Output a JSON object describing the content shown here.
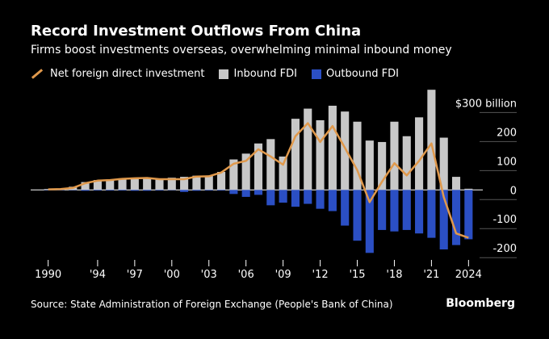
{
  "header": {
    "title": "Record Investment Outflows From China",
    "subtitle": "Firms boost investments overseas, overwhelming minimal inbound money"
  },
  "footer": {
    "source": "Source: State Administration of Foreign Exchange (People's Bank of China)",
    "brand": "Bloomberg"
  },
  "colors": {
    "net": "#e0994c",
    "inbound": "#c8c8c8",
    "outbound": "#2b4fc4",
    "background": "#000000"
  },
  "chart_data": {
    "type": "bar",
    "title": "Record Investment Outflows From China",
    "subtitle": "Firms boost investments overseas, overwhelming minimal inbound money",
    "years": [
      1990,
      1991,
      1992,
      1993,
      1994,
      1995,
      1996,
      1997,
      1998,
      1999,
      2000,
      2001,
      2002,
      2003,
      2004,
      2005,
      2006,
      2007,
      2008,
      2009,
      2010,
      2011,
      2012,
      2013,
      2014,
      2015,
      2016,
      2017,
      2018,
      2019,
      2020,
      2021,
      2022,
      2023,
      2024
    ],
    "x_tick_labels": [
      "1990",
      "'94",
      "'97",
      "'00",
      "'03",
      "'06",
      "'09",
      "'12",
      "'15",
      "'18",
      "'21",
      "2024"
    ],
    "x_tick_years": [
      1990,
      1994,
      1997,
      2000,
      2003,
      2006,
      2009,
      2012,
      2015,
      2018,
      2021,
      2024
    ],
    "y_tick_labels": [
      "$300 billion",
      "200",
      "100",
      "0",
      "-100",
      "-200"
    ],
    "y_tick_values": [
      300,
      200,
      100,
      0,
      -100,
      -200
    ],
    "ylim": [
      -230,
      340
    ],
    "series": [
      {
        "name": "Inbound FDI",
        "kind": "bar",
        "values": [
          3,
          4,
          11,
          27,
          34,
          36,
          40,
          42,
          41,
          37,
          42,
          45,
          49,
          49,
          62,
          105,
          125,
          160,
          175,
          115,
          245,
          280,
          240,
          290,
          270,
          235,
          170,
          165,
          235,
          185,
          250,
          345,
          180,
          45,
          4
        ]
      },
      {
        "name": "Outbound FDI",
        "kind": "bar",
        "values": [
          -1,
          -1,
          -1,
          -3,
          -2,
          -2,
          -2,
          -3,
          -3,
          -2,
          -1,
          -7,
          -3,
          -2,
          -2,
          -14,
          -24,
          -17,
          -53,
          -44,
          -58,
          -48,
          -65,
          -73,
          -123,
          -175,
          -217,
          -138,
          -143,
          -138,
          -150,
          -165,
          -205,
          -190,
          -170
        ]
      },
      {
        "name": "Net foreign direct investment",
        "kind": "line",
        "values": [
          2,
          3,
          7,
          23,
          32,
          34,
          38,
          40,
          41,
          37,
          37,
          37,
          46,
          47,
          60,
          90,
          100,
          140,
          115,
          87,
          185,
          230,
          165,
          220,
          145,
          68,
          -42,
          28,
          92,
          50,
          100,
          160,
          -25,
          -150,
          -165
        ]
      }
    ]
  }
}
